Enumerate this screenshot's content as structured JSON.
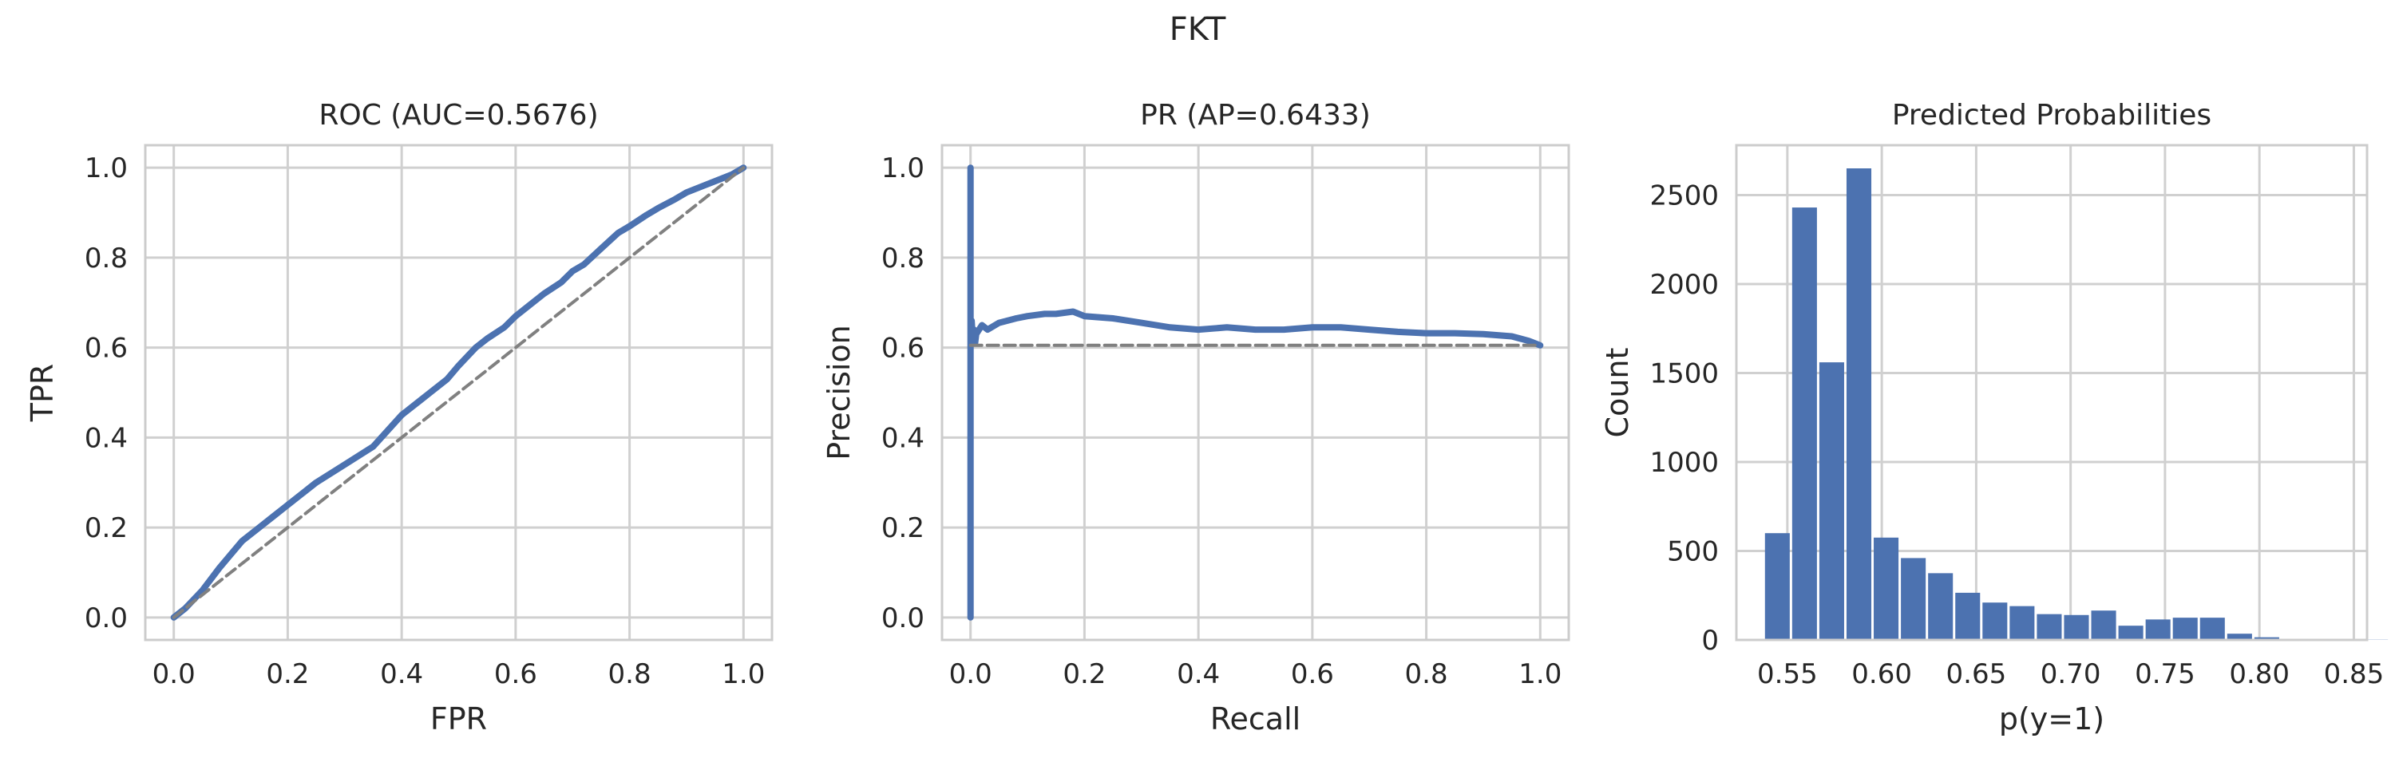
{
  "figure": {
    "title": "FKT"
  },
  "chart_data": [
    {
      "type": "line",
      "title": "ROC (AUC=0.5676)",
      "xlabel": "FPR",
      "ylabel": "TPR",
      "xlim": [
        -0.05,
        1.05
      ],
      "ylim": [
        -0.05,
        1.05
      ],
      "xticks": [
        0.0,
        0.2,
        0.4,
        0.6,
        0.8,
        1.0
      ],
      "yticks": [
        0.0,
        0.2,
        0.4,
        0.6,
        0.8,
        1.0
      ],
      "xtick_labels": [
        "0.0",
        "0.2",
        "0.4",
        "0.6",
        "0.8",
        "1.0"
      ],
      "ytick_labels": [
        "0.0",
        "0.2",
        "0.4",
        "0.6",
        "0.8",
        "1.0"
      ],
      "grid": true,
      "series": [
        {
          "role": "curve",
          "color": "#4c72b0",
          "x": [
            0.0,
            0.02,
            0.05,
            0.08,
            0.1,
            0.12,
            0.15,
            0.18,
            0.2,
            0.25,
            0.3,
            0.35,
            0.4,
            0.43,
            0.45,
            0.48,
            0.5,
            0.53,
            0.55,
            0.58,
            0.6,
            0.65,
            0.68,
            0.7,
            0.72,
            0.75,
            0.78,
            0.8,
            0.83,
            0.85,
            0.88,
            0.9,
            0.93,
            0.95,
            0.98,
            1.0
          ],
          "y": [
            0.0,
            0.02,
            0.06,
            0.11,
            0.14,
            0.17,
            0.2,
            0.23,
            0.25,
            0.3,
            0.34,
            0.38,
            0.45,
            0.48,
            0.5,
            0.53,
            0.56,
            0.6,
            0.62,
            0.645,
            0.67,
            0.72,
            0.745,
            0.77,
            0.785,
            0.82,
            0.855,
            0.87,
            0.895,
            0.91,
            0.93,
            0.945,
            0.96,
            0.97,
            0.985,
            1.0
          ]
        },
        {
          "role": "baseline",
          "style": "dashed",
          "color": "#808080",
          "x": [
            0.0,
            1.0
          ],
          "y": [
            0.0,
            1.0
          ]
        }
      ]
    },
    {
      "type": "line",
      "title": "PR (AP=0.6433)",
      "xlabel": "Recall",
      "ylabel": "Precision",
      "xlim": [
        -0.05,
        1.05
      ],
      "ylim": [
        -0.05,
        1.05
      ],
      "xticks": [
        0.0,
        0.2,
        0.4,
        0.6,
        0.8,
        1.0
      ],
      "yticks": [
        0.0,
        0.2,
        0.4,
        0.6,
        0.8,
        1.0
      ],
      "xtick_labels": [
        "0.0",
        "0.2",
        "0.4",
        "0.6",
        "0.8",
        "1.0"
      ],
      "ytick_labels": [
        "0.0",
        "0.2",
        "0.4",
        "0.6",
        "0.8",
        "1.0"
      ],
      "grid": true,
      "series": [
        {
          "role": "curve",
          "color": "#4c72b0",
          "x": [
            0.0,
            0.0,
            0.0,
            0.002,
            0.004,
            0.006,
            0.008,
            0.01,
            0.015,
            0.02,
            0.03,
            0.05,
            0.08,
            0.1,
            0.13,
            0.15,
            0.18,
            0.2,
            0.25,
            0.3,
            0.35,
            0.4,
            0.45,
            0.5,
            0.55,
            0.6,
            0.65,
            0.7,
            0.75,
            0.8,
            0.85,
            0.9,
            0.95,
            0.98,
            1.0
          ],
          "y": [
            1.0,
            0.0,
            0.6,
            0.66,
            0.62,
            0.64,
            0.61,
            0.63,
            0.64,
            0.65,
            0.64,
            0.655,
            0.665,
            0.67,
            0.675,
            0.675,
            0.68,
            0.67,
            0.665,
            0.655,
            0.645,
            0.64,
            0.645,
            0.64,
            0.64,
            0.645,
            0.645,
            0.64,
            0.635,
            0.632,
            0.632,
            0.63,
            0.625,
            0.615,
            0.605
          ]
        },
        {
          "role": "baseline",
          "style": "dashed",
          "color": "#808080",
          "x": [
            0.0,
            1.0
          ],
          "y": [
            0.605,
            0.605
          ]
        }
      ]
    },
    {
      "type": "bar",
      "title": "Predicted Probabilities",
      "xlabel": "p(y=1)",
      "ylabel": "Count",
      "xlim": [
        0.523,
        0.857
      ],
      "ylim": [
        0,
        2780
      ],
      "xticks": [
        0.55,
        0.6,
        0.65,
        0.7,
        0.75,
        0.8,
        0.85
      ],
      "yticks": [
        0,
        500,
        1000,
        1500,
        2000,
        2500
      ],
      "xtick_labels": [
        "0.55",
        "0.60",
        "0.65",
        "0.70",
        "0.75",
        "0.80",
        "0.85"
      ],
      "ytick_labels": [
        "0",
        "500",
        "1000",
        "1500",
        "2000",
        "2500"
      ],
      "grid": true,
      "color": "#4c72b0",
      "bin_start": 0.5375,
      "bin_width": 0.0144,
      "values": [
        600,
        2430,
        1560,
        2650,
        575,
        460,
        375,
        265,
        210,
        190,
        145,
        140,
        165,
        80,
        115,
        125,
        125,
        35,
        15,
        4,
        2,
        2,
        1
      ]
    }
  ]
}
